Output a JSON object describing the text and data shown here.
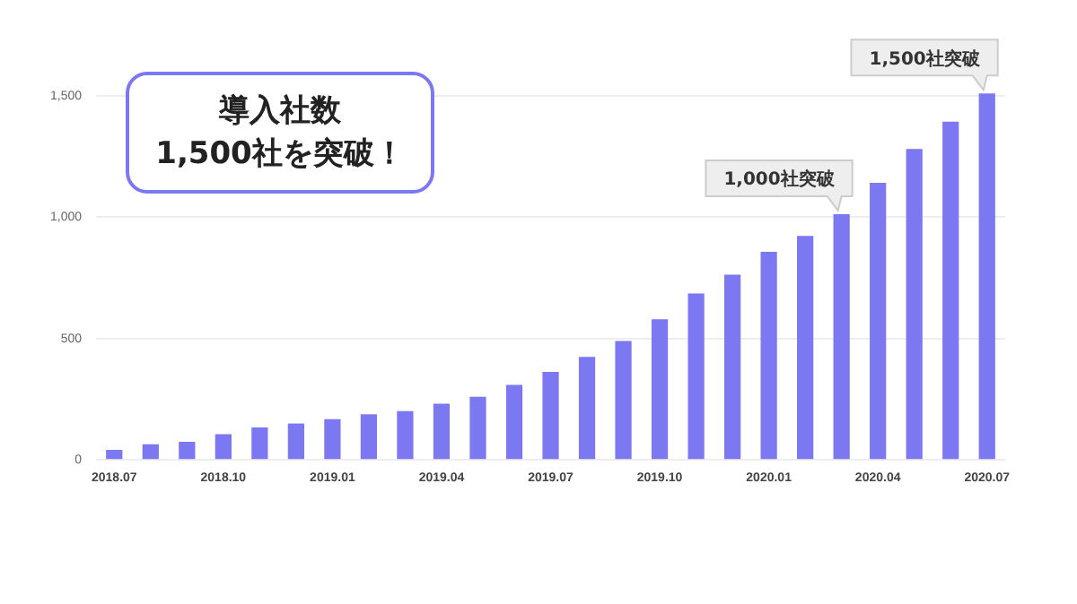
{
  "chart_data": {
    "type": "bar",
    "title": "導入社数\n1,500社を突破！",
    "categories": [
      "2018.07",
      null,
      null,
      "2018.10",
      null,
      null,
      "2019.01",
      null,
      null,
      "2019.04",
      null,
      null,
      "2019.07",
      null,
      null,
      "2019.10",
      null,
      null,
      "2020.01",
      null,
      null,
      "2020.04",
      null,
      null,
      "2020.07"
    ],
    "values": [
      41,
      64,
      75,
      106,
      134,
      150,
      168,
      188,
      201,
      232,
      260,
      309,
      363,
      425,
      490,
      580,
      686,
      763,
      858,
      923,
      1013,
      1142,
      1281,
      1394,
      1510
    ],
    "color": "#7b78f2",
    "ylim": [
      0,
      1600
    ],
    "yticks": [
      0,
      500,
      {
        "value": 1000,
        "label": "1,000"
      },
      {
        "value": 1500,
        "label": "1,500"
      }
    ],
    "grid": "y",
    "annotations": [
      "1,000社突破",
      "1,500社突破"
    ]
  }
}
